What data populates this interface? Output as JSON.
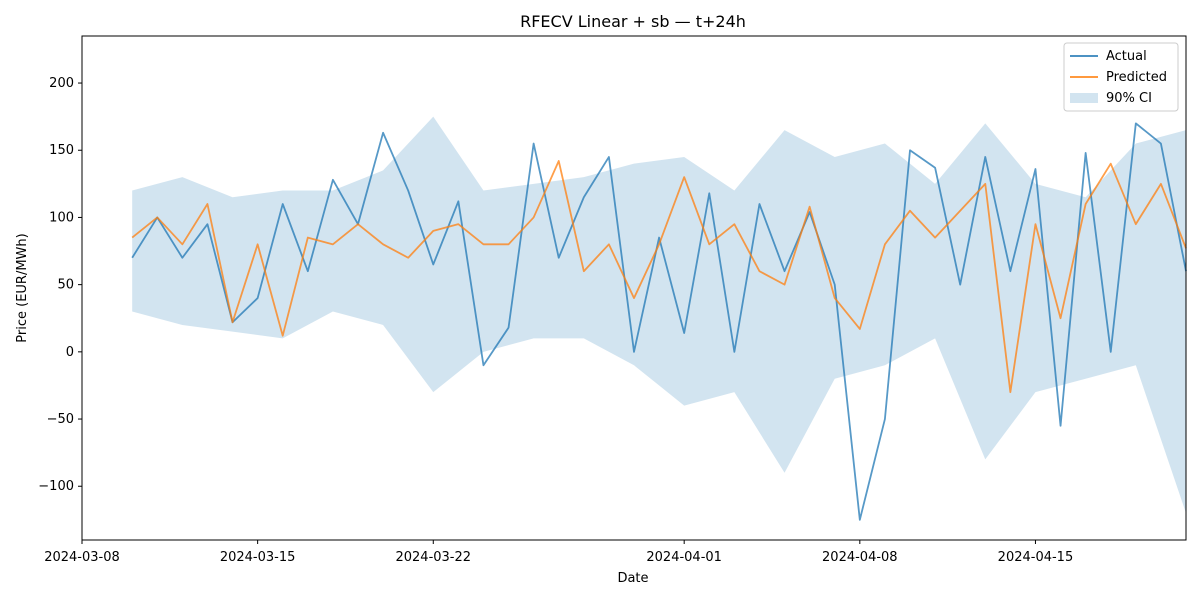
{
  "chart_data": {
    "type": "line",
    "title": "RFECV Linear + sb — t+24h",
    "xlabel": "Date",
    "ylabel": "Price (EUR/MWh)",
    "x_range": [
      "2024-03-08",
      "2024-04-21"
    ],
    "x_ticks": [
      "2024-03-08",
      "2024-03-15",
      "2024-03-22",
      "2024-04-01",
      "2024-04-08",
      "2024-04-15"
    ],
    "ylim": [
      -140,
      235
    ],
    "y_ticks": [
      -100,
      -50,
      0,
      50,
      100,
      150,
      200
    ],
    "grid": false,
    "legend_position": "top-right",
    "series": [
      {
        "name": "Actual",
        "color": "#1f77b4",
        "x": [
          "2024-03-10",
          "2024-03-11",
          "2024-03-12",
          "2024-03-13",
          "2024-03-14",
          "2024-03-15",
          "2024-03-16",
          "2024-03-17",
          "2024-03-18",
          "2024-03-19",
          "2024-03-20",
          "2024-03-21",
          "2024-03-22",
          "2024-03-23",
          "2024-03-24",
          "2024-03-25",
          "2024-03-26",
          "2024-03-27",
          "2024-03-28",
          "2024-03-29",
          "2024-03-30",
          "2024-03-31",
          "2024-04-01",
          "2024-04-02",
          "2024-04-03",
          "2024-04-04",
          "2024-04-05",
          "2024-04-06",
          "2024-04-07",
          "2024-04-08",
          "2024-04-09",
          "2024-04-10",
          "2024-04-11",
          "2024-04-12",
          "2024-04-13",
          "2024-04-14",
          "2024-04-15",
          "2024-04-16",
          "2024-04-17",
          "2024-04-18",
          "2024-04-19",
          "2024-04-20",
          "2024-04-21"
        ],
        "values": [
          70,
          100,
          70,
          95,
          22,
          40,
          110,
          60,
          128,
          95,
          163,
          120,
          65,
          112,
          -10,
          18,
          155,
          70,
          115,
          145,
          0,
          85,
          14,
          118,
          0,
          110,
          60,
          104,
          50,
          -125,
          -50,
          150,
          137,
          50,
          145,
          60,
          136,
          -55,
          148,
          0,
          170,
          155,
          60
        ]
      },
      {
        "name": "Predicted",
        "color": "#ff7f0e",
        "x": [
          "2024-03-10",
          "2024-03-11",
          "2024-03-12",
          "2024-03-13",
          "2024-03-14",
          "2024-03-15",
          "2024-03-16",
          "2024-03-17",
          "2024-03-18",
          "2024-03-19",
          "2024-03-20",
          "2024-03-21",
          "2024-03-22",
          "2024-03-23",
          "2024-03-24",
          "2024-03-25",
          "2024-03-26",
          "2024-03-27",
          "2024-03-28",
          "2024-03-29",
          "2024-03-30",
          "2024-03-31",
          "2024-04-01",
          "2024-04-02",
          "2024-04-03",
          "2024-04-04",
          "2024-04-05",
          "2024-04-06",
          "2024-04-07",
          "2024-04-08",
          "2024-04-09",
          "2024-04-10",
          "2024-04-11",
          "2024-04-12",
          "2024-04-13",
          "2024-04-14",
          "2024-04-15",
          "2024-04-16",
          "2024-04-17",
          "2024-04-18",
          "2024-04-19",
          "2024-04-20",
          "2024-04-21"
        ],
        "values": [
          85,
          100,
          80,
          110,
          22,
          80,
          12,
          85,
          80,
          95,
          80,
          70,
          90,
          95,
          80,
          80,
          100,
          142,
          60,
          80,
          40,
          80,
          130,
          80,
          95,
          60,
          50,
          108,
          40,
          17,
          80,
          105,
          85,
          105,
          125,
          -30,
          95,
          25,
          110,
          140,
          95,
          125,
          77
        ]
      }
    ],
    "band": {
      "name": "90% CI",
      "color": "#1f77b4",
      "x": [
        "2024-03-10",
        "2024-03-12",
        "2024-03-14",
        "2024-03-16",
        "2024-03-18",
        "2024-03-20",
        "2024-03-22",
        "2024-03-24",
        "2024-03-26",
        "2024-03-28",
        "2024-03-30",
        "2024-04-01",
        "2024-04-03",
        "2024-04-05",
        "2024-04-07",
        "2024-04-09",
        "2024-04-11",
        "2024-04-13",
        "2024-04-15",
        "2024-04-17",
        "2024-04-19",
        "2024-04-21"
      ],
      "upper": [
        120,
        130,
        115,
        120,
        120,
        135,
        175,
        120,
        125,
        130,
        140,
        145,
        120,
        165,
        145,
        155,
        125,
        170,
        125,
        115,
        155,
        165
      ],
      "lower": [
        30,
        20,
        15,
        10,
        30,
        20,
        -30,
        0,
        10,
        10,
        -10,
        -40,
        -30,
        -90,
        -20,
        -10,
        10,
        -80,
        -30,
        -20,
        -10,
        -120
      ]
    }
  }
}
